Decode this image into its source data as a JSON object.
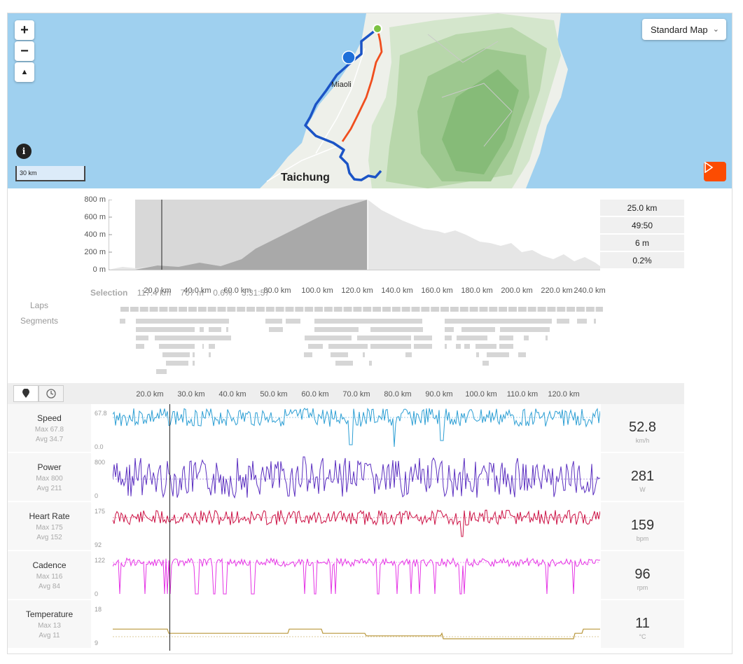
{
  "map": {
    "zoom_in": "+",
    "zoom_out": "−",
    "compass": "▲",
    "map_type": "Standard Map",
    "city_miaoli": "Miaoli",
    "city_taichung": "Taichung",
    "scale_label": "30 km",
    "info": "i"
  },
  "elevation": {
    "y_ticks": [
      "800 m",
      "600 m",
      "400 m",
      "200 m",
      "0 m"
    ],
    "x_ticks": [
      "20.0 km",
      "40.0 km",
      "60.0 km",
      "80.0 km",
      "100.0 km",
      "120.0 km",
      "140.0 km",
      "160.0 km",
      "180.0 km",
      "200.0 km",
      "220.0 km",
      "240.0 km"
    ],
    "stats": [
      "25.0 km",
      "49:50",
      "6 m",
      "0.2%"
    ]
  },
  "selection": {
    "label": "Selection",
    "distance": "117.4 km",
    "elevation": "707 m",
    "grade": "0.6%",
    "time": "3:31:57"
  },
  "labels": {
    "laps": "Laps",
    "segments": "Segments"
  },
  "streams_axis": [
    "20.0 km",
    "30.0 km",
    "40.0 km",
    "50.0 km",
    "60.0 km",
    "70.0 km",
    "80.0 km",
    "90.0 km",
    "100.0 km",
    "110.0 km",
    "120.0 km"
  ],
  "streams": [
    {
      "name": "Speed",
      "max": "Max 67.8",
      "avg": "Avg 34.7",
      "value": "52.8",
      "unit": "km/h",
      "top": "67.8",
      "bottom": "0.0",
      "color": "#2d9fd4"
    },
    {
      "name": "Power",
      "max": "Max 800",
      "avg": "Avg 211",
      "value": "281",
      "unit": "W",
      "top": "800",
      "bottom": "0",
      "color": "#5b2fc0"
    },
    {
      "name": "Heart Rate",
      "max": "Max 175",
      "avg": "Avg 152",
      "value": "159",
      "unit": "bpm",
      "top": "175",
      "bottom": "92",
      "color": "#cc1144"
    },
    {
      "name": "Cadence",
      "max": "Max 116",
      "avg": "Avg 84",
      "value": "96",
      "unit": "rpm",
      "top": "122",
      "bottom": "0",
      "color": "#e535e5"
    },
    {
      "name": "Temperature",
      "max": "Max 13",
      "avg": "Avg 11",
      "value": "11",
      "unit": "°C",
      "top": "18",
      "bottom": "9",
      "color": "#b8963a"
    }
  ]
}
